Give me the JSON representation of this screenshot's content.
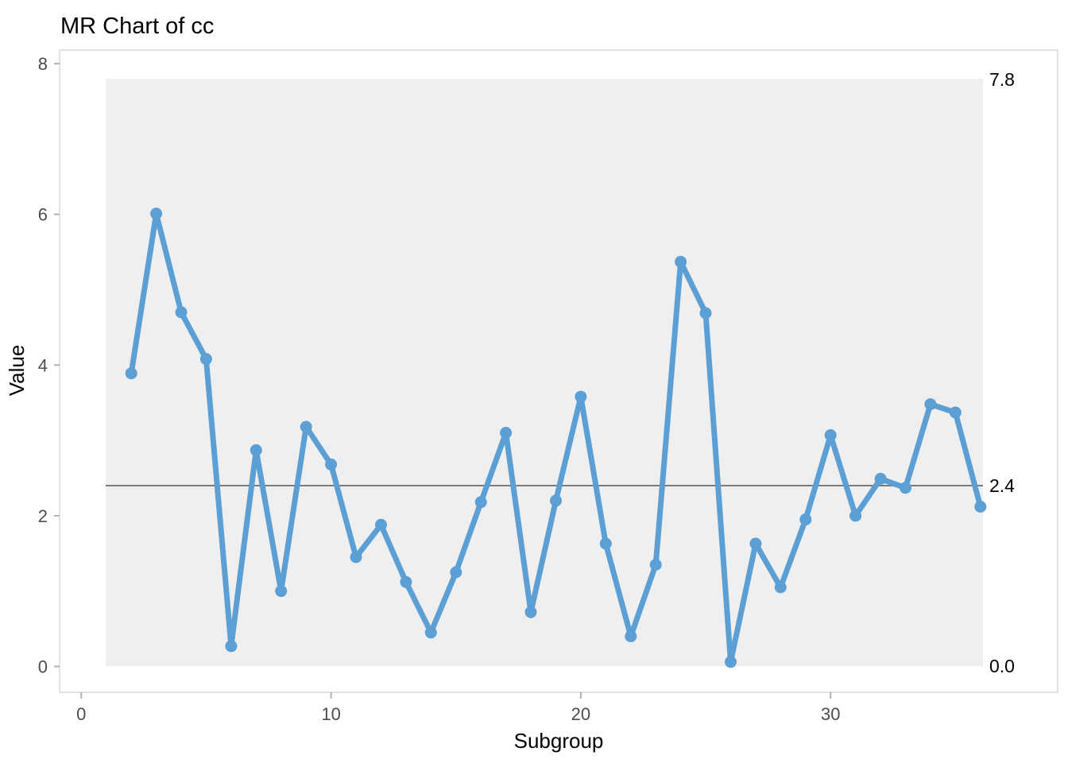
{
  "chart_data": {
    "type": "line",
    "title": "MR Chart of cc",
    "xlabel": "Subgroup",
    "ylabel": "Value",
    "x": [
      2,
      3,
      4,
      5,
      6,
      7,
      8,
      9,
      10,
      11,
      12,
      13,
      14,
      15,
      16,
      17,
      18,
      19,
      20,
      21,
      22,
      23,
      24,
      25,
      26,
      27,
      28,
      29,
      30,
      31,
      32,
      33,
      34,
      35,
      36
    ],
    "values": [
      3.89,
      6.01,
      4.7,
      4.08,
      0.27,
      2.87,
      1.0,
      3.18,
      2.68,
      1.45,
      1.88,
      1.12,
      0.45,
      1.25,
      2.18,
      3.1,
      0.72,
      2.2,
      3.58,
      1.63,
      0.4,
      1.35,
      5.37,
      4.69,
      0.06,
      1.63,
      1.05,
      1.95,
      3.07,
      2.0,
      2.49,
      2.37,
      3.48,
      3.37,
      2.12
    ],
    "limits": {
      "ucl": 7.8,
      "cl": 2.4,
      "lcl": 0.0
    },
    "limit_labels": {
      "ucl": "7.8",
      "cl": "2.4",
      "lcl": "0.0"
    },
    "x_ticks": [
      0,
      10,
      20,
      30
    ],
    "y_ticks": [
      0,
      2,
      4,
      6,
      8
    ],
    "xlim": [
      -0.9,
      39.1
    ],
    "ylim": [
      -0.35,
      8.18
    ],
    "grid": false,
    "legend": false,
    "colors": {
      "series": "#5B9FD4",
      "band": "#EFEFEF",
      "center_line": "#7A7A7A",
      "panel_border": "#D9D9D9",
      "tick_mark": "#B0B0B0",
      "tick_label": "#4D4D4D",
      "text": "#000000"
    }
  }
}
